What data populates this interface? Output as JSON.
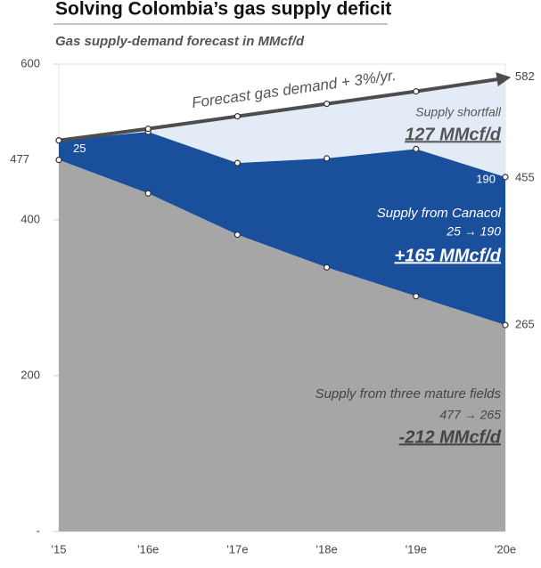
{
  "chart_data": {
    "type": "stacked-area",
    "title": "Solving Colombia’s gas supply deficit",
    "subtitle": "Gas supply-demand forecast in MMcf/d",
    "categories": [
      "'15",
      "'16e",
      "'17e",
      "'18e",
      "'19e",
      "'20e"
    ],
    "ylim": [
      0,
      600
    ],
    "yticks": [
      {
        "value": 0,
        "label": "-"
      },
      200,
      400,
      600
    ],
    "series": [
      {
        "name": "Supply from three mature fields",
        "color": "#a6a6a6",
        "values": [
          477,
          434,
          381,
          339,
          302,
          265
        ]
      },
      {
        "name": "Supply from Canacol",
        "color": "#1a4f9c",
        "values": [
          25,
          79,
          92,
          140,
          189,
          190
        ]
      },
      {
        "name": "Forecast gas demand + 3%/yr.",
        "color": "#4d4d4d",
        "type": "line",
        "values": [
          502,
          517,
          533,
          549,
          565,
          582
        ]
      }
    ],
    "shortfall_color": "#e3ebf6",
    "annotations": [
      "Supply shortfall",
      "127 MMcf/d",
      "25 → 190",
      "+165 MMcf/d",
      "477 → 265",
      "-212 MMcf/d",
      "455"
    ]
  }
}
